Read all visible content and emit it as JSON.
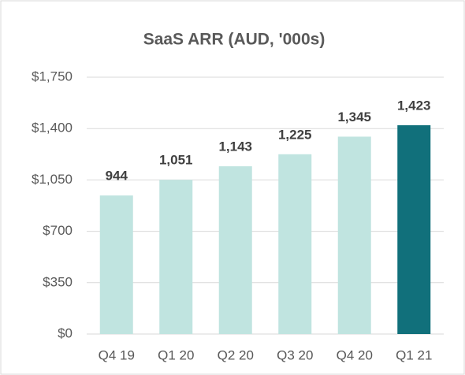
{
  "chart_data": {
    "type": "bar",
    "title": "SaaS ARR (AUD, '000s)",
    "categories": [
      "Q4 19",
      "Q1 20",
      "Q2 20",
      "Q3 20",
      "Q4 20",
      "Q1 21"
    ],
    "values": [
      944,
      1051,
      1143,
      1225,
      1345,
      1423
    ],
    "value_labels": [
      "944",
      "1,051",
      "1,143",
      "1,225",
      "1,345",
      "1,423"
    ],
    "colors": [
      "#c0e4e0",
      "#c0e4e0",
      "#c0e4e0",
      "#c0e4e0",
      "#c0e4e0",
      "#11707b"
    ],
    "ylim": [
      0,
      1750
    ],
    "yticks": [
      {
        "value": 0,
        "label": "$0"
      },
      {
        "value": 350,
        "label": "$350"
      },
      {
        "value": 700,
        "label": "$700"
      },
      {
        "value": 1050,
        "label": "$1,050"
      },
      {
        "value": 1400,
        "label": "$1,400"
      },
      {
        "value": 1750,
        "label": "$1,750"
      }
    ],
    "grid": true
  }
}
